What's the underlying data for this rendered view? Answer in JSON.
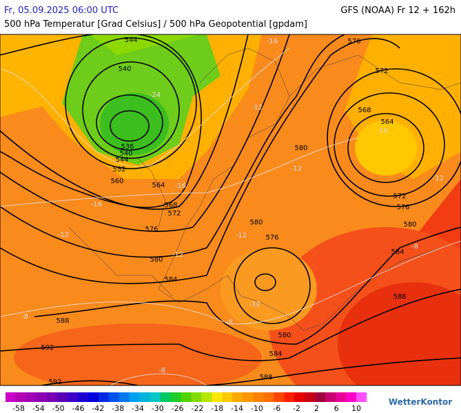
{
  "header": {
    "left": "Fr, 05.09.2025 06:00 UTC",
    "right": "GFS (NOAA) Fr 12 + 162h",
    "subtitle": "500 hPa Temperatur [Grad Celsius] / 500 hPa Geopotential [gpdam]"
  },
  "map": {
    "geopotential_labels": [
      544,
      540,
      536,
      540,
      544,
      552,
      560,
      564,
      568,
      572,
      576,
      580,
      584,
      588,
      592,
      592,
      576,
      572,
      568,
      564,
      580,
      580,
      576,
      572,
      576,
      580,
      584,
      588,
      580,
      584,
      588
    ],
    "temperature_labels": [
      -16,
      -24,
      -12,
      -16,
      -12,
      -12,
      -16,
      -16,
      -12,
      -12,
      -12,
      -12,
      -8,
      -8,
      -8,
      -8
    ]
  },
  "colorbar": {
    "ticks": [
      -58,
      -54,
      -50,
      -46,
      -42,
      -38,
      -34,
      -30,
      -26,
      -22,
      -18,
      -14,
      -10,
      -6,
      -2,
      2,
      6,
      10
    ],
    "colors": [
      "#c800c8",
      "#b400b4",
      "#a000b4",
      "#8c00b4",
      "#7800b4",
      "#5a00b4",
      "#3c00c8",
      "#1e00d2",
      "#0000dc",
      "#0028e6",
      "#0050f0",
      "#0078f0",
      "#00a0f0",
      "#00b4dc",
      "#00c8c8",
      "#00c864",
      "#1ecc28",
      "#50d200",
      "#82dc00",
      "#b4e600",
      "#ffe600",
      "#ffc800",
      "#ffaa00",
      "#ff9600",
      "#ff8200",
      "#ff6e00",
      "#ff4600",
      "#ff1e00",
      "#e60000",
      "#c80014",
      "#a0003c",
      "#c8006e",
      "#e60096",
      "#ff00c8",
      "#ff50ff"
    ]
  },
  "logo": "WetterKontor"
}
